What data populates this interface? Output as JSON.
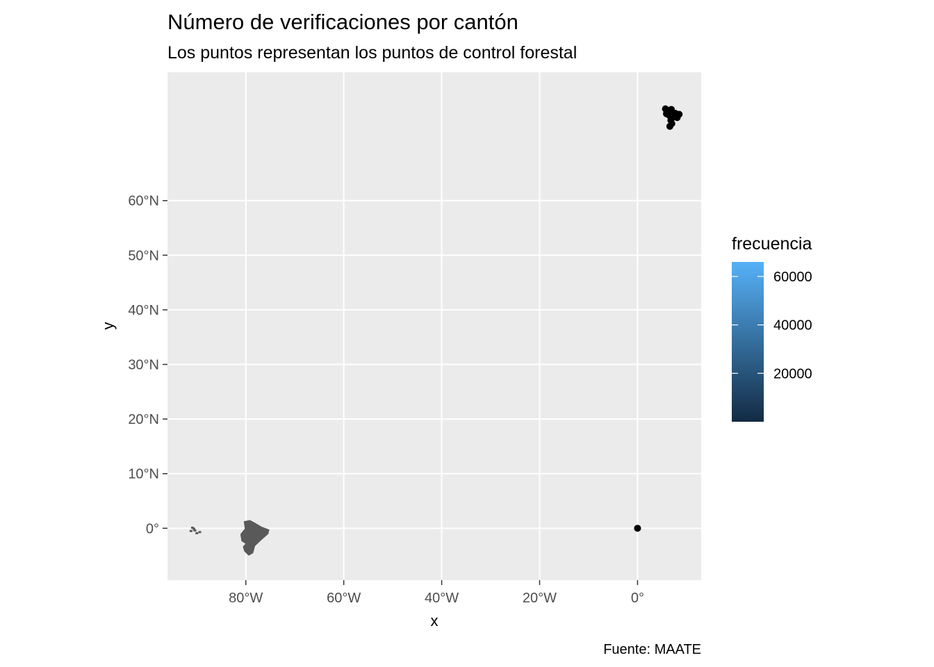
{
  "title": "Número de verificaciones por cantón",
  "subtitle": "Los puntos representan los puntos de control forestal",
  "caption": "Fuente: MAATE",
  "chart_data": {
    "type": "map",
    "xlabel": "x",
    "ylabel": "y",
    "xlim": [
      -96,
      13
    ],
    "ylim": [
      -9.5,
      83.5
    ],
    "x_ticks": [
      {
        "value": -80,
        "label": "80°W"
      },
      {
        "value": -60,
        "label": "60°W"
      },
      {
        "value": -40,
        "label": "40°W"
      },
      {
        "value": -20,
        "label": "20°W"
      },
      {
        "value": 0,
        "label": "0°"
      }
    ],
    "y_ticks": [
      {
        "value": 0,
        "label": "0°"
      },
      {
        "value": 10,
        "label": "10°N"
      },
      {
        "value": 20,
        "label": "20°N"
      },
      {
        "value": 30,
        "label": "30°N"
      },
      {
        "value": 40,
        "label": "40°N"
      },
      {
        "value": 50,
        "label": "50°N"
      },
      {
        "value": 60,
        "label": "60°N"
      }
    ],
    "legend": {
      "title": "frecuencia",
      "position": "right",
      "min": 0,
      "max": 66000,
      "low_color": "#132B43",
      "high_color": "#56B1F7",
      "breaks": [
        {
          "value": 20000,
          "label": "20000"
        },
        {
          "value": 40000,
          "label": "40000"
        },
        {
          "value": 60000,
          "label": "60000"
        }
      ]
    },
    "layers": {
      "polygon_fill": "#595959",
      "ecuador_mainland": {
        "name": "Ecuador",
        "outline": [
          [
            -80.3,
            1.2
          ],
          [
            -79.2,
            1.4
          ],
          [
            -78.3,
            1.0
          ],
          [
            -76.8,
            0.2
          ],
          [
            -75.3,
            -0.3
          ],
          [
            -75.5,
            -1.0
          ],
          [
            -76.9,
            -2.1
          ],
          [
            -78.2,
            -3.2
          ],
          [
            -78.6,
            -4.5
          ],
          [
            -79.4,
            -4.9
          ],
          [
            -80.2,
            -4.2
          ],
          [
            -80.5,
            -3.4
          ],
          [
            -79.9,
            -2.8
          ],
          [
            -80.8,
            -2.3
          ],
          [
            -81.0,
            -1.1
          ],
          [
            -80.1,
            -0.1
          ]
        ]
      },
      "galapagos": [
        {
          "x": -90.9,
          "y": 0.1
        },
        {
          "x": -91.2,
          "y": -0.5
        },
        {
          "x": -90.4,
          "y": -0.4
        },
        {
          "x": -90.0,
          "y": -0.9
        },
        {
          "x": -89.4,
          "y": -0.7
        },
        {
          "x": -90.6,
          "y": -0.1
        }
      ],
      "control_points": [
        {
          "x": 0,
          "y": 0
        },
        {
          "x": 5.7,
          "y": 76.8
        },
        {
          "x": 6.3,
          "y": 76.4
        },
        {
          "x": 6.9,
          "y": 76.7
        },
        {
          "x": 7.7,
          "y": 76.0
        },
        {
          "x": 6.5,
          "y": 75.6
        },
        {
          "x": 7.4,
          "y": 75.3
        },
        {
          "x": 6.8,
          "y": 74.7
        },
        {
          "x": 7.0,
          "y": 74.1
        },
        {
          "x": 6.6,
          "y": 73.6
        },
        {
          "x": 8.5,
          "y": 75.8
        },
        {
          "x": 8.1,
          "y": 75.2
        },
        {
          "x": 5.9,
          "y": 75.9
        }
      ]
    }
  }
}
